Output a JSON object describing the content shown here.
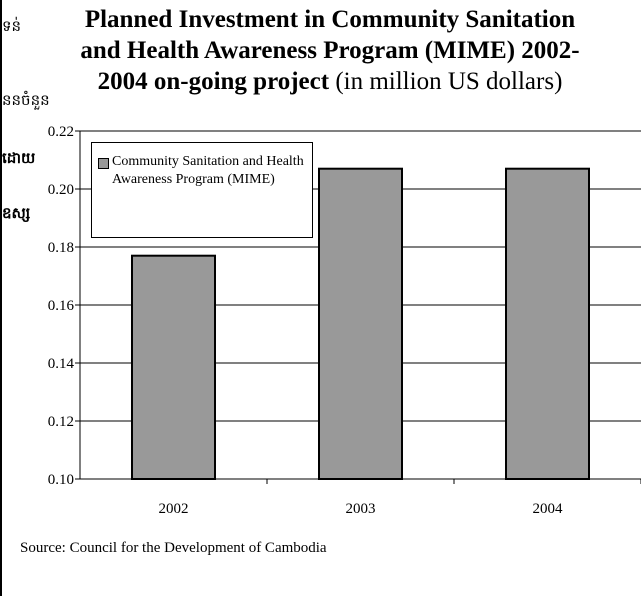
{
  "side_text": [
    "ទន់",
    "ននចំនួន",
    "ដោយ",
    "ឧស្ស"
  ],
  "title": {
    "line1": "Planned Investment in Community Sanitation",
    "line2": "and Health Awareness Program (MIME)  2002-",
    "line3_bold": "2004 on-going project",
    "line3_normal": " (in million US dollars)"
  },
  "source": "Source: Council for the Development of Cambodia",
  "chart_data": {
    "type": "bar",
    "categories": [
      "2002",
      "2003",
      "2004"
    ],
    "series": [
      {
        "name": "Community Sanitation and Health Awareness Program (MIME)",
        "values": [
          0.177,
          0.207,
          0.207
        ],
        "color": "#999999"
      }
    ],
    "ylim": [
      0.1,
      0.22
    ],
    "yticks": [
      "0.10",
      "0.12",
      "0.14",
      "0.16",
      "0.18",
      "0.20",
      "0.22"
    ],
    "grid": true,
    "legend_position": "top-left"
  }
}
